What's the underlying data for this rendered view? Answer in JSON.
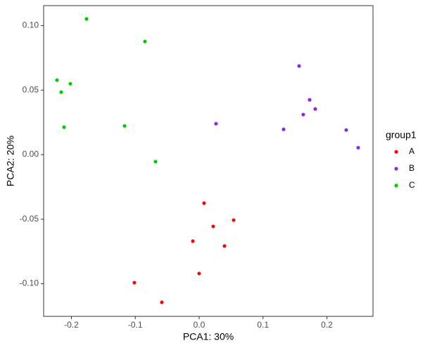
{
  "chart_data": {
    "type": "scatter",
    "xlabel": "PCA1: 30%",
    "ylabel": "PCA2: 20%",
    "legend_title": "group1",
    "legend": "right",
    "grid": false,
    "xlim": [
      -0.2435,
      0.2722
    ],
    "ylim": [
      -0.1253,
      0.1155
    ],
    "xticks": [
      -0.2,
      -0.1,
      {
        "value": 0,
        "label": "0.0"
      },
      0.1,
      0.2
    ],
    "yticks": [
      {
        "value": 0.1,
        "label": "0.10"
      },
      0.05,
      {
        "value": 0,
        "label": "0.00"
      },
      -0.05,
      {
        "value": -0.1,
        "label": "-0.10"
      }
    ],
    "series": [
      {
        "name": "A",
        "color": "#e3120b",
        "x": [
          0.0077,
          0.054,
          0.022,
          -0.0099,
          0.0397,
          0.0,
          -0.1014,
          -0.0584
        ],
        "values": [
          -0.0376,
          -0.0507,
          -0.0556,
          -0.067,
          -0.0708,
          -0.0921,
          -0.0992,
          -0.1144
        ]
      },
      {
        "name": "B",
        "color": "#8a2be2",
        "x": [
          0.1565,
          0.173,
          0.1818,
          0.163,
          0.0264,
          0.1322,
          0.2303,
          0.249
        ],
        "values": [
          0.0687,
          0.0425,
          0.0354,
          0.0311,
          0.024,
          0.0196,
          0.0191,
          0.0054
        ]
      },
      {
        "name": "C",
        "color": "#00cd00",
        "x": [
          -0.1763,
          -0.0848,
          -0.2226,
          -0.2017,
          -0.216,
          -0.2116,
          -0.1168,
          -0.0683
        ],
        "values": [
          0.1052,
          0.0877,
          0.0578,
          0.055,
          0.0485,
          0.0213,
          0.0223,
          -0.0054
        ]
      }
    ]
  }
}
